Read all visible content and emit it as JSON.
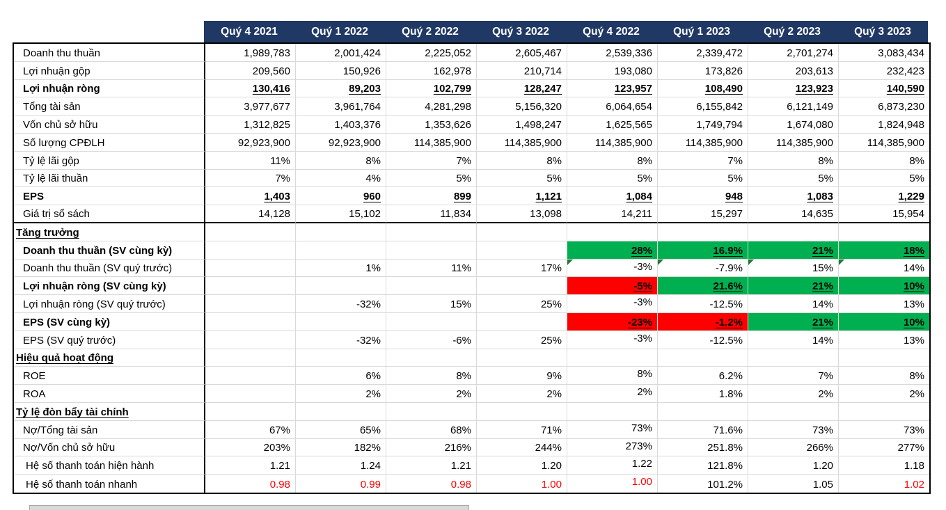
{
  "colors": {
    "header_bg": "#1F3864",
    "header_text": "#ffffff",
    "positive_fill": "#00B050",
    "negative_fill": "#FF0000",
    "warning_text": "#FF0000",
    "gridline": "#D9D9D9",
    "corner_mark": "#1E7B34"
  },
  "table": {
    "columns": [
      "Quý 4 2021",
      "Quý 1 2022",
      "Quý 2 2022",
      "Quý 3 2022",
      "Quý 4 2022",
      "Quý 1 2023",
      "Quý 2 2023",
      "Quý 3 2023"
    ],
    "rows": [
      {
        "label": "Doanh thu thuần",
        "values": [
          "1,989,783",
          "2,001,424",
          "2,225,052",
          "2,605,467",
          "2,539,336",
          "2,339,472",
          "2,701,274",
          "3,083,434"
        ]
      },
      {
        "label": "Lợi nhuận gộp",
        "values": [
          "209,560",
          "150,926",
          "162,978",
          "210,714",
          "193,080",
          "173,826",
          "203,613",
          "232,423"
        ]
      },
      {
        "label": "Lợi nhuận ròng",
        "label_style": "bold",
        "values_emph": true,
        "values": [
          "130,416",
          "89,203",
          "102,799",
          "128,247",
          "123,957",
          "108,490",
          "123,923",
          "140,590"
        ]
      },
      {
        "label": "Tổng tài sản",
        "values": [
          "3,977,677",
          "3,961,764",
          "4,281,298",
          "5,156,320",
          "6,064,654",
          "6,155,842",
          "6,121,149",
          "6,873,230"
        ]
      },
      {
        "label": "Vốn chủ sở hữu",
        "values": [
          "1,312,825",
          "1,403,376",
          "1,353,626",
          "1,498,247",
          "1,625,565",
          "1,749,794",
          "1,674,080",
          "1,824,948"
        ]
      },
      {
        "label": "Số lượng CPĐLH",
        "values": [
          "92,923,900",
          "92,923,900",
          "114,385,900",
          "114,385,900",
          "114,385,900",
          "114,385,900",
          "114,385,900",
          "114,385,900"
        ]
      },
      {
        "label": "Tỷ lệ lãi gộp",
        "values": [
          "11%",
          "8%",
          "7%",
          "8%",
          "8%",
          "7%",
          "8%",
          "8%"
        ]
      },
      {
        "label": "Tỷ lệ lãi thuần",
        "values": [
          "7%",
          "4%",
          "5%",
          "5%",
          "5%",
          "5%",
          "5%",
          "5%"
        ]
      },
      {
        "label": "EPS",
        "label_style": "bold",
        "values_emph": true,
        "values": [
          "1,403",
          "960",
          "899",
          "1,121",
          "1,084",
          "948",
          "1,083",
          "1,229"
        ]
      },
      {
        "label": "Giá trị sổ sách",
        "thick_bottom": true,
        "values": [
          "14,128",
          "15,102",
          "11,834",
          "13,098",
          "14,211",
          "15,297",
          "14,635",
          "15,954"
        ]
      },
      {
        "label": "Tăng trưởng",
        "label_style": "section",
        "values": [
          "",
          "",
          "",
          "",
          "",
          "",
          "",
          ""
        ]
      },
      {
        "label": "Doanh thu thuần (SV cùng kỳ)",
        "label_style": "bold",
        "values_emph": true,
        "values": [
          "",
          "",
          "",
          "",
          "28%",
          "16.9%",
          "21%",
          "18%"
        ],
        "fills": [
          null,
          null,
          null,
          null,
          "green",
          "green",
          "green",
          "green"
        ]
      },
      {
        "label": "Doanh thu thuần (SV quý trước)",
        "values": [
          "",
          "1%",
          "11%",
          "17%",
          "-3%",
          "-7.9%",
          "15%",
          "14%"
        ],
        "corner_cols": [
          4,
          5,
          6,
          7
        ],
        "va_top_cols": [
          4
        ]
      },
      {
        "label": "Lợi nhuận ròng (SV cùng kỳ)",
        "label_style": "bold",
        "values_emph": true,
        "values": [
          "",
          "",
          "",
          "",
          "-5%",
          "21.6%",
          "21%",
          "10%"
        ],
        "fills": [
          null,
          null,
          null,
          null,
          "red",
          "green",
          "green",
          "green"
        ]
      },
      {
        "label": "Lợi nhuận ròng (SV quý trước)",
        "values": [
          "",
          "-32%",
          "15%",
          "25%",
          "-3%",
          "-12.5%",
          "14%",
          "13%"
        ],
        "va_top_cols": [
          4
        ]
      },
      {
        "label": "EPS (SV cùng kỳ)",
        "label_style": "bold",
        "values_emph": true,
        "values": [
          "",
          "",
          "",
          "",
          "-23%",
          "-1.2%",
          "21%",
          "10%"
        ],
        "fills": [
          null,
          null,
          null,
          null,
          "red",
          "red",
          "green",
          "green"
        ]
      },
      {
        "label": "EPS (SV quý trước)",
        "values": [
          "",
          "-32%",
          "-6%",
          "25%",
          "-3%",
          "-12.5%",
          "14%",
          "13%"
        ],
        "va_top_cols": [
          4
        ]
      },
      {
        "label": "Hiệu quả hoạt động",
        "label_style": "section",
        "values": [
          "",
          "",
          "",
          "",
          "",
          "",
          "",
          ""
        ]
      },
      {
        "label": "ROE",
        "values": [
          "",
          "6%",
          "8%",
          "9%",
          "8%",
          "6.2%",
          "7%",
          "8%"
        ],
        "va_top_cols": [
          4
        ]
      },
      {
        "label": "ROA",
        "values": [
          "",
          "2%",
          "2%",
          "2%",
          "2%",
          "1.8%",
          "2%",
          "2%"
        ],
        "va_top_cols": [
          4
        ]
      },
      {
        "label": "Tỷ lệ đòn bẩy tài chính",
        "label_style": "section",
        "values": [
          "",
          "",
          "",
          "",
          "",
          "",
          "",
          ""
        ]
      },
      {
        "label": "Nợ/Tổng tài sản",
        "values": [
          "67%",
          "65%",
          "68%",
          "71%",
          "73%",
          "71.6%",
          "73%",
          "73%"
        ],
        "va_top_cols": [
          4
        ]
      },
      {
        "label": "Nợ/Vốn chủ sở hữu",
        "values": [
          "203%",
          "182%",
          "216%",
          "244%",
          "273%",
          "251.8%",
          "266%",
          "277%"
        ],
        "va_top_cols": [
          4
        ]
      },
      {
        "label": "Hệ số thanh toán hiện hành",
        "label_style": "indent2",
        "values": [
          "1.21",
          "1.24",
          "1.21",
          "1.20",
          "1.22",
          "121.8%",
          "1.20",
          "1.18"
        ],
        "va_top_cols": [
          4
        ]
      },
      {
        "label": "Hệ số thanh toán nhanh",
        "label_style": "indent2",
        "values": [
          "0.98",
          "0.99",
          "0.98",
          "1.00",
          "1.00",
          "101.2%",
          "1.05",
          "1.02"
        ],
        "text_colors": [
          "red",
          "red",
          "red",
          "red",
          "red",
          "",
          "",
          "red"
        ],
        "va_top_cols": [
          4
        ]
      }
    ]
  }
}
